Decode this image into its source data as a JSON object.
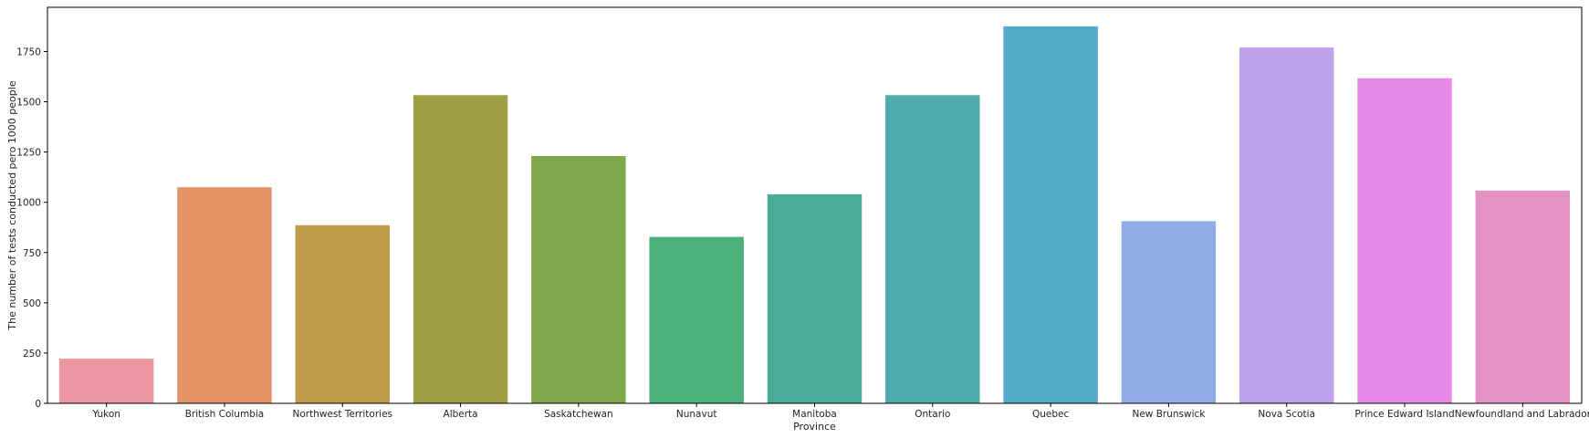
{
  "chart_data": {
    "type": "bar",
    "title": "",
    "xlabel": "Province",
    "ylabel": "The number of tests conducted pero 1000 people",
    "categories": [
      "Yukon",
      "British Columbia",
      "Northwest Territories",
      "Alberta",
      "Saskatchewan",
      "Nunavut",
      "Manitoba",
      "Ontario",
      "Quebec",
      "New Brunswick",
      "Nova Scotia",
      "Prince Edward Island",
      "Newfoundland and Labrador"
    ],
    "values": [
      222,
      1075,
      886,
      1533,
      1230,
      828,
      1040,
      1533,
      1875,
      906,
      1770,
      1617,
      1058
    ],
    "colors": [
      "#ed96a1",
      "#e39366",
      "#be9c4b",
      "#a09f45",
      "#7da94a",
      "#4bb17a",
      "#4cab98",
      "#4daaad",
      "#53aac9",
      "#90adea",
      "#bfa2eb",
      "#e688e8",
      "#e792c4"
    ],
    "ylim": [
      0,
      1970
    ],
    "yticks": [
      "0",
      "250",
      "500",
      "750",
      "1000",
      "1250",
      "1500",
      "1750"
    ],
    "grid": false
  }
}
